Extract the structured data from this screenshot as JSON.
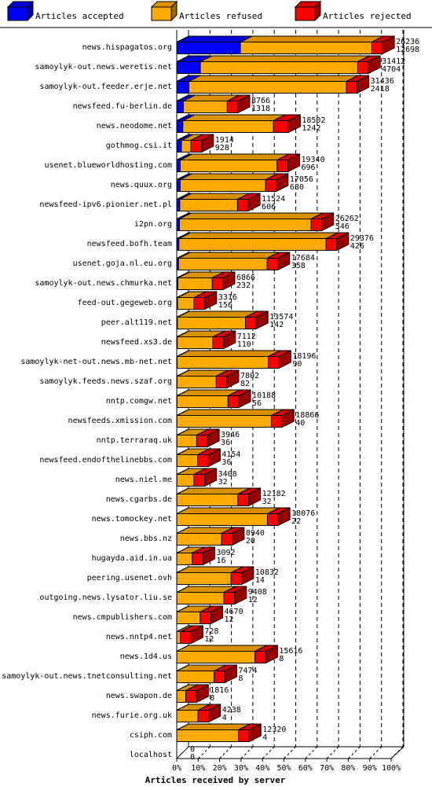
{
  "chart_data": {
    "type": "bar",
    "orientation": "horizontal",
    "stacked": true,
    "style": "3d",
    "title": "",
    "xlabel": "Articles received by server",
    "ylabel": "",
    "xlim": [
      0,
      100
    ],
    "x_unit": "%",
    "x_ticks": [
      "0%",
      "10%",
      "20%",
      "30%",
      "40%",
      "50%",
      "60%",
      "70%",
      "80%",
      "90%",
      "100%"
    ],
    "grid": "vertical dashed",
    "legend_position": "top",
    "legend": [
      {
        "label": "Articles accepted",
        "color": "#0000ff"
      },
      {
        "label": "Articles refused",
        "color": "#ffaa00"
      },
      {
        "label": "Articles rejected",
        "color": "#ff0000"
      }
    ],
    "categories": [
      "news.hispagatos.org",
      "samoylyk-out.news.weretis.net",
      "samoylyk-out.feeder.erje.net",
      "newsfeed.fu-berlin.de",
      "news.neodome.net",
      "gothmog.csi.it",
      "usenet.blueworldhosting.com",
      "news.quux.org",
      "newsfeed-ipv6.pionier.net.pl",
      "i2pn.org",
      "newsfeed.bofh.team",
      "usenet.goja.nl.eu.org",
      "samoylyk-out.news.chmurka.net",
      "feed-out.gegeweb.org",
      "peer.alt119.net",
      "newsfeed.xs3.de",
      "samoylyk-net-out.news.mb-net.net",
      "samoylyk.feeds.news.szaf.org",
      "nntp.comgw.net",
      "newsfeeds.xmission.com",
      "nntp.terraraq.uk",
      "newsfeed.endofthelinebbs.com",
      "news.niel.me",
      "news.cgarbs.de",
      "news.tomockey.net",
      "news.bbs.nz",
      "hugayda.aid.in.ua",
      "peering.usenet.ovh",
      "outgoing.news.lysator.liu.se",
      "news.cmpublishers.com",
      "news.nntp4.net",
      "news.1d4.us",
      "samoylyk-out.news.tnetconsulting.net",
      "news.swapon.de",
      "news.furie.org.uk",
      "csiph.com",
      "localhost"
    ],
    "offered": [
      26236,
      31412,
      31436,
      8766,
      18502,
      1914,
      19340,
      17056,
      11524,
      26262,
      29376,
      17684,
      6866,
      3316,
      13574,
      7112,
      18196,
      7802,
      10188,
      18866,
      3946,
      4154,
      3408,
      12182,
      18076,
      8940,
      3092,
      10832,
      9408,
      4670,
      728,
      15616,
      7474,
      1816,
      4238,
      12320,
      0
    ],
    "accepted": [
      12698,
      4704,
      2418,
      1318,
      1242,
      928,
      696,
      680,
      606,
      546,
      426,
      358,
      232,
      156,
      142,
      110,
      90,
      82,
      56,
      40,
      36,
      36,
      32,
      32,
      22,
      20,
      16,
      14,
      12,
      12,
      12,
      8,
      8,
      8,
      4,
      4,
      0
    ],
    "rejected_pct": [
      5,
      5,
      5,
      5,
      7,
      5,
      5,
      5,
      5,
      5,
      5,
      5,
      5,
      5,
      5,
      5,
      5,
      5,
      5,
      5,
      5,
      5,
      5,
      5,
      5,
      5,
      5,
      5,
      5,
      5,
      5,
      5,
      5,
      5,
      5,
      5,
      0
    ]
  }
}
